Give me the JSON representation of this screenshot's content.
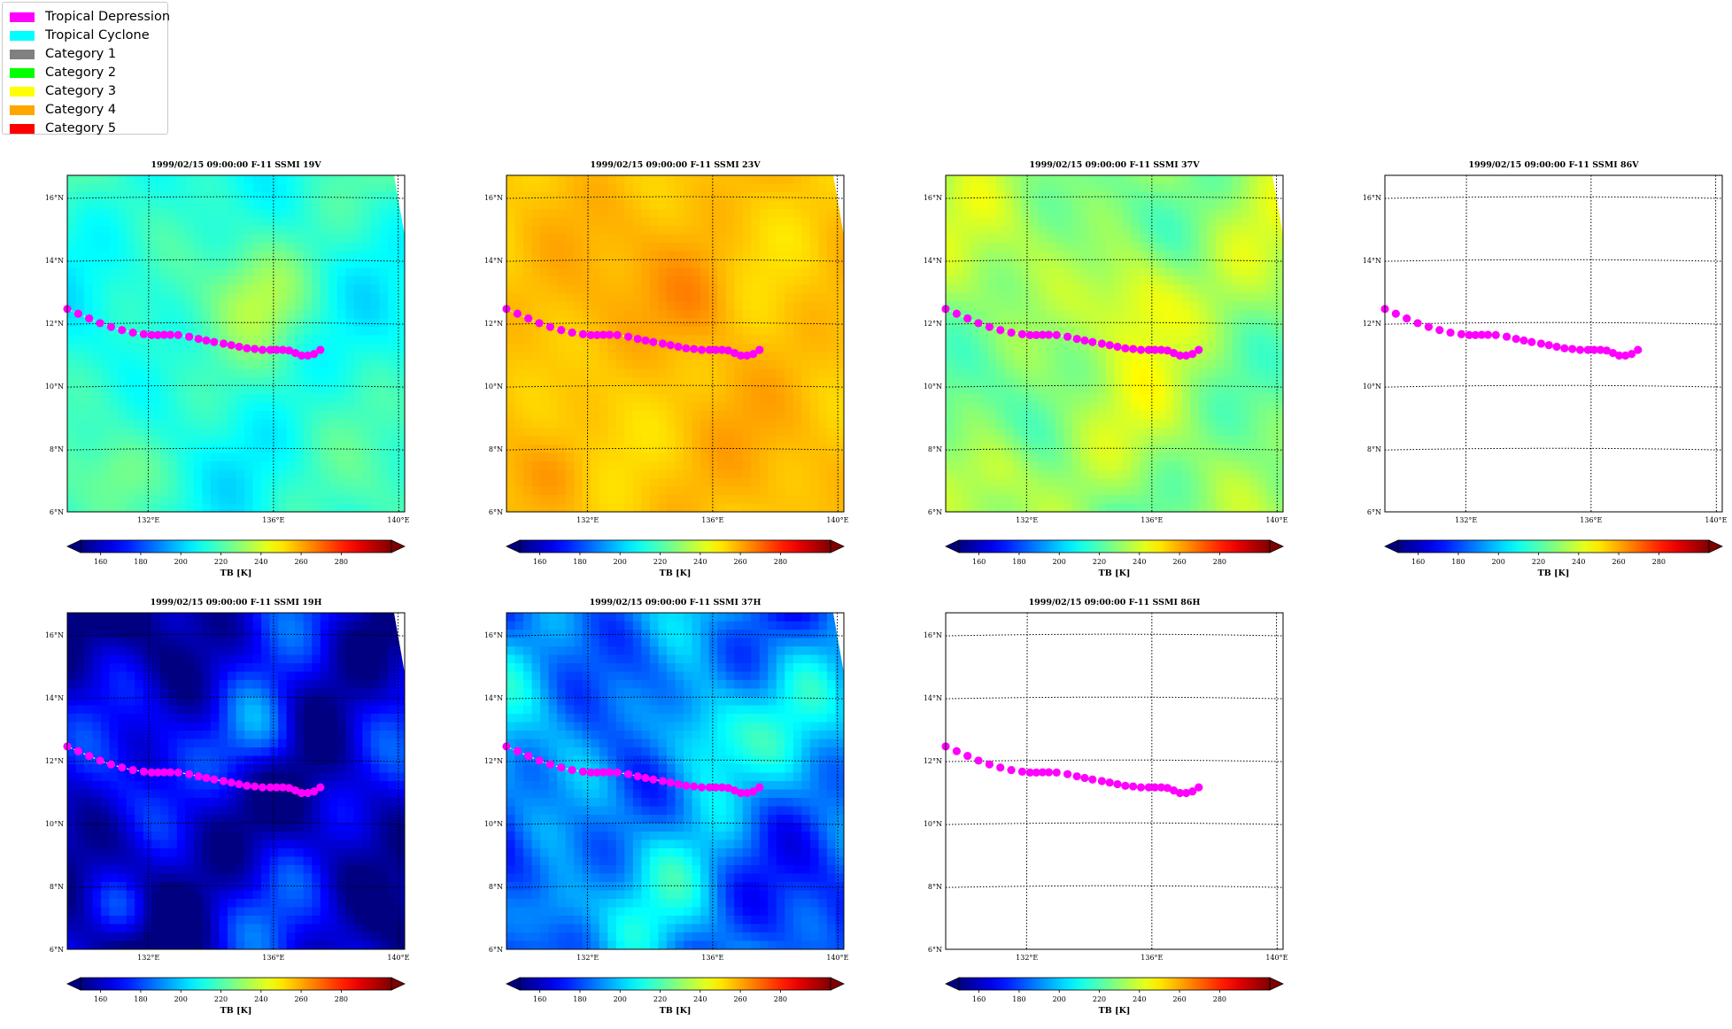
{
  "legend": {
    "items": [
      {
        "label": "Tropical Depression",
        "color": "#ff00ff",
        "icon": "legend-swatch"
      },
      {
        "label": "Tropical Cyclone",
        "color": "#00ffff",
        "icon": "legend-swatch"
      },
      {
        "label": "Category 1",
        "color": "#808080",
        "icon": "legend-swatch"
      },
      {
        "label": "Category 2",
        "color": "#00ff00",
        "icon": "legend-swatch"
      },
      {
        "label": "Category 3",
        "color": "#ffff00",
        "icon": "legend-swatch"
      },
      {
        "label": "Category 4",
        "color": "#ffa500",
        "icon": "legend-swatch"
      },
      {
        "label": "Category 5",
        "color": "#ff0000",
        "icon": "legend-swatch"
      }
    ]
  },
  "map_common": {
    "lon_ticks": [
      132,
      136,
      140
    ],
    "lon_tick_labels": [
      "132°E",
      "136°E",
      "140°E"
    ],
    "lat_ticks": [
      6,
      8,
      10,
      12,
      14,
      16
    ],
    "lat_tick_labels": [
      "6°N",
      "8°N",
      "10°N",
      "12°N",
      "14°N",
      "16°N"
    ],
    "lon_range": [
      129.4,
      140.2
    ],
    "lat_range": [
      6,
      16.7
    ],
    "colorbar": {
      "label": "TB [K]",
      "range": [
        150,
        305
      ],
      "ticks": [
        160,
        180,
        200,
        220,
        240,
        260,
        280
      ],
      "colormap": "jet",
      "extend": "both"
    },
    "track_color": "#ff00ff",
    "track_category": "Tropical Depression",
    "track": [
      [
        129.4,
        12.45
      ],
      [
        129.75,
        12.3
      ],
      [
        130.1,
        12.15
      ],
      [
        130.45,
        12.0
      ],
      [
        130.8,
        11.88
      ],
      [
        131.15,
        11.78
      ],
      [
        131.5,
        11.7
      ],
      [
        131.85,
        11.65
      ],
      [
        132.1,
        11.62
      ],
      [
        132.3,
        11.62
      ],
      [
        132.5,
        11.63
      ],
      [
        132.7,
        11.63
      ],
      [
        132.95,
        11.62
      ],
      [
        133.3,
        11.57
      ],
      [
        133.6,
        11.5
      ],
      [
        133.85,
        11.45
      ],
      [
        134.1,
        11.4
      ],
      [
        134.4,
        11.35
      ],
      [
        134.65,
        11.3
      ],
      [
        134.9,
        11.25
      ],
      [
        135.15,
        11.2
      ],
      [
        135.4,
        11.18
      ],
      [
        135.65,
        11.15
      ],
      [
        135.9,
        11.15
      ],
      [
        136.1,
        11.15
      ],
      [
        136.3,
        11.15
      ],
      [
        136.5,
        11.13
      ],
      [
        136.7,
        11.05
      ],
      [
        136.9,
        10.97
      ],
      [
        137.1,
        10.97
      ],
      [
        137.3,
        11.02
      ],
      [
        137.5,
        11.15
      ]
    ]
  },
  "panels": [
    {
      "title": "1999/02/15 09:00:00  F-11 SSMI 19V",
      "channel": "19V",
      "has_data": true,
      "tb_base": 214,
      "tb_amp": 22
    },
    {
      "title": "1999/02/15 09:00:00  F-11 SSMI 23V",
      "channel": "23V",
      "has_data": true,
      "tb_base": 256,
      "tb_amp": 12
    },
    {
      "title": "1999/02/15 09:00:00  F-11 SSMI 37V",
      "channel": "37V",
      "has_data": true,
      "tb_base": 230,
      "tb_amp": 30
    },
    {
      "title": "1999/02/15 09:00:00  F-11 SSMI 86V",
      "channel": "86V",
      "has_data": false
    },
    {
      "title": "1999/02/15 09:00:00  F-11 SSMI 19H",
      "channel": "19H",
      "has_data": true,
      "tb_base": 160,
      "tb_amp": 55
    },
    {
      "title": "1999/02/15 09:00:00  F-11 SSMI 37H",
      "channel": "37H",
      "has_data": true,
      "tb_base": 188,
      "tb_amp": 55
    },
    {
      "title": "1999/02/15 09:00:00  F-11 SSMI 86H",
      "channel": "86H",
      "has_data": false
    }
  ]
}
